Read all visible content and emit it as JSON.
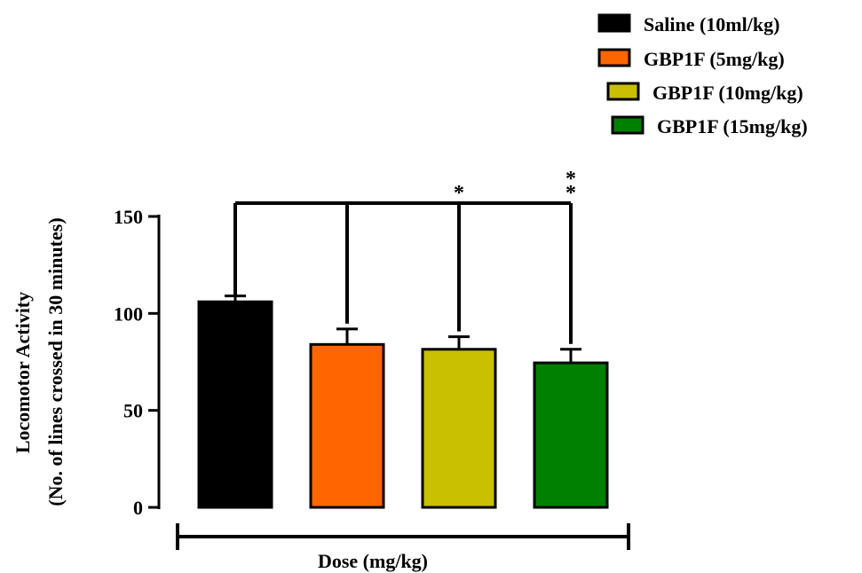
{
  "chart_data": {
    "type": "bar",
    "categories": [
      "Saline (10ml/kg)",
      "GBP1F (5mg/kg)",
      "GBP1F (10mg/kg)",
      "GBP1F (15mg/kg)"
    ],
    "values": [
      106,
      84,
      81.5,
      74.5
    ],
    "errors": [
      3,
      8,
      6.5,
      7
    ],
    "colors": [
      "#000000",
      "#ff6600",
      "#c8c000",
      "#008000"
    ],
    "significance": [
      "",
      "",
      "*",
      "**"
    ],
    "ylim": [
      0,
      150
    ],
    "yticks": [
      0,
      50,
      100,
      150
    ],
    "ylabel_line1": "Locomotor Activity",
    "ylabel_line2": "(No. of lines crossed in 30 minutes)",
    "xlabel": "Dose (mg/kg)",
    "legend": {
      "placement": "top-right",
      "entries": [
        "Saline (10ml/kg)",
        "GBP1F (5mg/kg)",
        "GBP1F (10mg/kg)",
        "GBP1F (15mg/kg)"
      ]
    }
  }
}
